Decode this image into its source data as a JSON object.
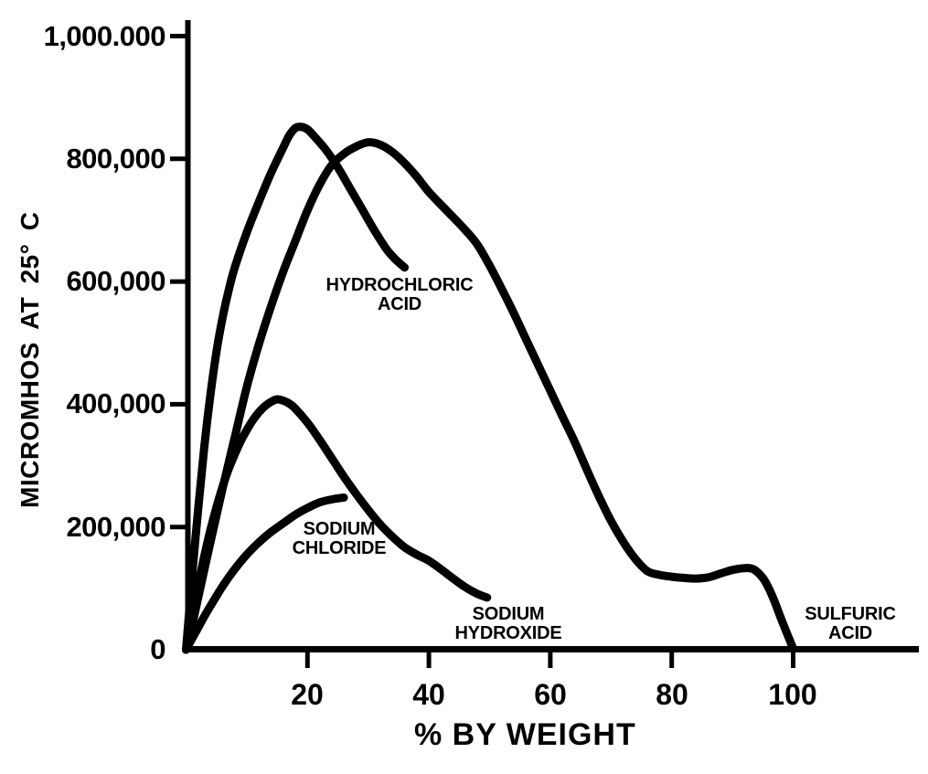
{
  "chart_data": {
    "type": "line",
    "title": "",
    "xlabel": "% BY WEIGHT",
    "ylabel": "MICROMHOS AT 25° C",
    "xlim": [
      0,
      121
    ],
    "ylim": [
      0,
      1030000
    ],
    "grid": false,
    "legend": "inline curve annotations",
    "line_color": "#000000",
    "background": "#ffffff",
    "xticks": [
      {
        "value": 20,
        "label": "20"
      },
      {
        "value": 40,
        "label": "40"
      },
      {
        "value": 60,
        "label": "60"
      },
      {
        "value": 80,
        "label": "80"
      },
      {
        "value": 100,
        "label": "100"
      }
    ],
    "yticks": [
      {
        "value": 1000000,
        "label": "1,000.000"
      },
      {
        "value": 800000,
        "label": "800,000"
      },
      {
        "value": 600000,
        "label": "600,000"
      },
      {
        "value": 400000,
        "label": "400,000"
      },
      {
        "value": 200000,
        "label": "200,000"
      },
      {
        "value": 0,
        "label": "0"
      }
    ],
    "series": [
      {
        "name": "HYDROCHLORIC ACID",
        "label": [
          "HYDROCHLORIC",
          "ACID"
        ],
        "points": [
          [
            0,
            0
          ],
          [
            0.5,
            60000
          ],
          [
            1,
            120000
          ],
          [
            2,
            230000
          ],
          [
            3,
            330000
          ],
          [
            4,
            415000
          ],
          [
            5,
            485000
          ],
          [
            6,
            540000
          ],
          [
            7,
            585000
          ],
          [
            8,
            622000
          ],
          [
            10,
            680000
          ],
          [
            12,
            730000
          ],
          [
            14,
            777000
          ],
          [
            16,
            818000
          ],
          [
            17,
            838000
          ],
          [
            18,
            850000
          ],
          [
            19,
            852000
          ],
          [
            20,
            848000
          ],
          [
            21,
            838000
          ],
          [
            23,
            815000
          ],
          [
            25,
            786000
          ],
          [
            27,
            752000
          ],
          [
            29,
            718000
          ],
          [
            31,
            684000
          ],
          [
            33,
            653000
          ],
          [
            34.5,
            636000
          ],
          [
            36,
            623000
          ]
        ]
      },
      {
        "name": "SULFURIC ACID",
        "label": [
          "SULFURIC",
          "ACID"
        ],
        "points": [
          [
            0,
            0
          ],
          [
            1,
            40000
          ],
          [
            2,
            85000
          ],
          [
            4,
            175000
          ],
          [
            6,
            262000
          ],
          [
            8,
            345000
          ],
          [
            10,
            428000
          ],
          [
            12,
            498000
          ],
          [
            14,
            560000
          ],
          [
            16,
            616000
          ],
          [
            18,
            666000
          ],
          [
            20,
            716000
          ],
          [
            22,
            758000
          ],
          [
            24,
            790000
          ],
          [
            26,
            808000
          ],
          [
            28,
            820000
          ],
          [
            30,
            827000
          ],
          [
            32,
            823000
          ],
          [
            34,
            811000
          ],
          [
            36,
            793000
          ],
          [
            38,
            771000
          ],
          [
            40,
            746000
          ],
          [
            43,
            715000
          ],
          [
            46,
            684000
          ],
          [
            48,
            660000
          ],
          [
            50,
            626000
          ],
          [
            52,
            588000
          ],
          [
            54,
            548000
          ],
          [
            56,
            506000
          ],
          [
            58,
            464000
          ],
          [
            60,
            422000
          ],
          [
            62,
            380000
          ],
          [
            64,
            339000
          ],
          [
            66,
            294000
          ],
          [
            68,
            250000
          ],
          [
            70,
            210000
          ],
          [
            72,
            176000
          ],
          [
            74,
            148000
          ],
          [
            76,
            128000
          ],
          [
            78,
            122000
          ],
          [
            80,
            119000
          ],
          [
            82,
            117000
          ],
          [
            84,
            116000
          ],
          [
            86,
            118000
          ],
          [
            88,
            124000
          ],
          [
            90,
            130000
          ],
          [
            92,
            133000
          ],
          [
            93.5,
            131000
          ],
          [
            95,
            117000
          ],
          [
            96,
            100000
          ],
          [
            97,
            77000
          ],
          [
            98,
            51000
          ],
          [
            99,
            26000
          ],
          [
            100,
            2000
          ]
        ]
      },
      {
        "name": "SODIUM CHLORIDE",
        "label": [
          "SODIUM",
          "CHLORIDE"
        ],
        "points": [
          [
            0,
            0
          ],
          [
            1,
            18000
          ],
          [
            2,
            36000
          ],
          [
            3,
            54000
          ],
          [
            4,
            71000
          ],
          [
            6,
            103000
          ],
          [
            8,
            131000
          ],
          [
            10,
            155000
          ],
          [
            12,
            175000
          ],
          [
            14,
            192000
          ],
          [
            16,
            206000
          ],
          [
            18,
            220000
          ],
          [
            20,
            231000
          ],
          [
            22,
            240000
          ],
          [
            24,
            245000
          ],
          [
            26,
            248000
          ]
        ]
      },
      {
        "name": "SODIUM HYDROXIDE",
        "label": [
          "SODIUM",
          "HYDROXIDE"
        ],
        "points": [
          [
            0,
            0
          ],
          [
            1,
            55000
          ],
          [
            2,
            105000
          ],
          [
            3,
            152000
          ],
          [
            4,
            195000
          ],
          [
            5,
            232000
          ],
          [
            6,
            265000
          ],
          [
            7,
            294000
          ],
          [
            8,
            318000
          ],
          [
            9,
            340000
          ],
          [
            10,
            358000
          ],
          [
            11,
            374000
          ],
          [
            12,
            387000
          ],
          [
            13,
            397000
          ],
          [
            14,
            404000
          ],
          [
            15,
            408000
          ],
          [
            16,
            406000
          ],
          [
            17,
            401000
          ],
          [
            18,
            393000
          ],
          [
            20,
            370000
          ],
          [
            22,
            342000
          ],
          [
            24,
            312000
          ],
          [
            26,
            282000
          ],
          [
            28,
            254000
          ],
          [
            30,
            228000
          ],
          [
            32,
            204000
          ],
          [
            34,
            184000
          ],
          [
            36,
            167000
          ],
          [
            38,
            155000
          ],
          [
            40,
            145000
          ],
          [
            42,
            131000
          ],
          [
            44,
            116000
          ],
          [
            46,
            102000
          ],
          [
            48,
            91000
          ],
          [
            49.6,
            85000
          ]
        ]
      }
    ]
  }
}
